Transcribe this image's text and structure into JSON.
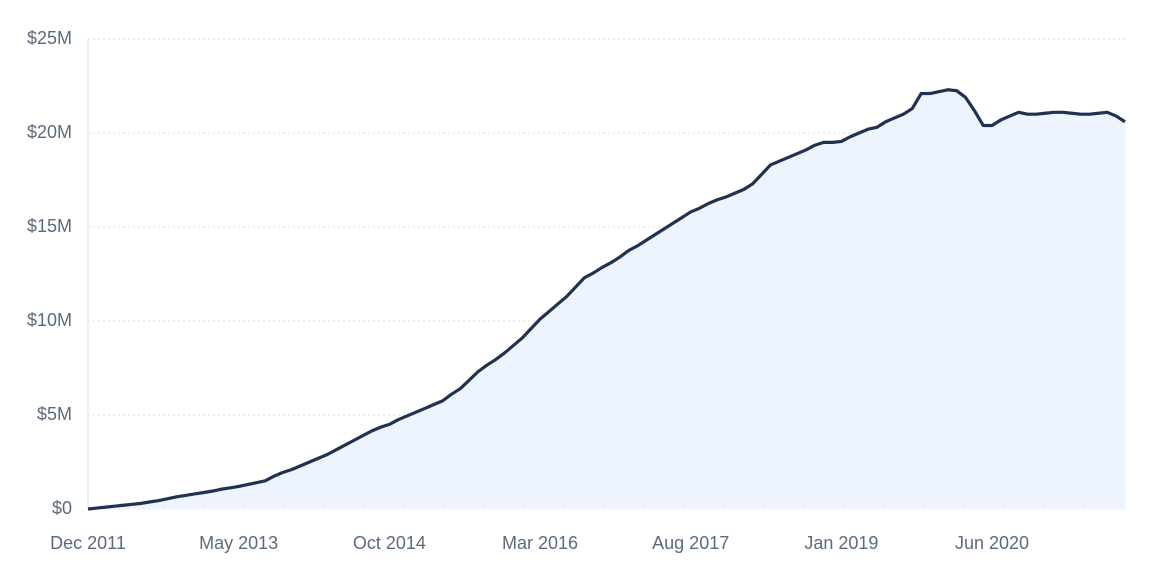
{
  "chart_data": {
    "type": "area",
    "categories": [
      "Dec 2011",
      null,
      null,
      null,
      null,
      null,
      null,
      null,
      null,
      null,
      null,
      null,
      null,
      null,
      null,
      null,
      null,
      "May 2013",
      null,
      null,
      null,
      null,
      null,
      null,
      null,
      null,
      null,
      null,
      null,
      null,
      null,
      null,
      null,
      null,
      "Oct 2014",
      null,
      null,
      null,
      null,
      null,
      null,
      null,
      null,
      null,
      null,
      null,
      null,
      null,
      null,
      null,
      null,
      "Mar 2016",
      null,
      null,
      null,
      null,
      null,
      null,
      null,
      null,
      null,
      null,
      null,
      null,
      null,
      null,
      null,
      null,
      "Aug 2017",
      null,
      null,
      null,
      null,
      null,
      null,
      null,
      null,
      null,
      null,
      null,
      null,
      null,
      null,
      null,
      null,
      "Jan 2019",
      null,
      null,
      null,
      null,
      null,
      null,
      null,
      null,
      null,
      null,
      null,
      null,
      null,
      null,
      null,
      null,
      "Jun 2020",
      null,
      null,
      null,
      null,
      null,
      null,
      null,
      null,
      null,
      null,
      null,
      null,
      null,
      null,
      null
    ],
    "values": [
      0,
      50000,
      100000,
      150000,
      200000,
      250000,
      300000,
      380000,
      450000,
      550000,
      650000,
      720000,
      800000,
      870000,
      950000,
      1050000,
      1120000,
      1200000,
      1300000,
      1400000,
      1500000,
      1750000,
      1950000,
      2100000,
      2300000,
      2500000,
      2700000,
      2900000,
      3150000,
      3400000,
      3650000,
      3900000,
      4150000,
      4350000,
      4500000,
      4750000,
      4950000,
      5150000,
      5350000,
      5550000,
      5750000,
      6100000,
      6400000,
      6850000,
      7300000,
      7650000,
      7950000,
      8300000,
      8700000,
      9100000,
      9600000,
      10100000,
      10500000,
      10900000,
      11300000,
      11800000,
      12300000,
      12550000,
      12850000,
      13100000,
      13400000,
      13750000,
      14000000,
      14300000,
      14600000,
      14900000,
      15200000,
      15500000,
      15800000,
      16000000,
      16250000,
      16450000,
      16600000,
      16800000,
      17000000,
      17300000,
      17800000,
      18300000,
      18500000,
      18700000,
      18900000,
      19100000,
      19350000,
      19500000,
      19500000,
      19550000,
      19800000,
      20000000,
      20200000,
      20300000,
      20600000,
      20800000,
      21000000,
      21300000,
      22100000,
      22100000,
      22200000,
      22300000,
      22250000,
      21900000,
      21200000,
      20400000,
      20400000,
      20700000,
      20900000,
      21100000,
      21000000,
      21000000,
      21050000,
      21100000,
      21100000,
      21050000,
      21000000,
      21000000,
      21050000,
      21100000,
      20900000,
      20600000
    ],
    "color": "#1f3251",
    "fill_color": "#eef4fd",
    "ylim": [
      0,
      25000000
    ],
    "yticks": [
      {
        "value": 0,
        "label": "$0"
      },
      {
        "value": 5000000,
        "label": "$5M"
      },
      {
        "value": 10000000,
        "label": "$10M"
      },
      {
        "value": 15000000,
        "label": "$15M"
      },
      {
        "value": 20000000,
        "label": "$20M"
      },
      {
        "value": 25000000,
        "label": "$25M"
      }
    ],
    "grid": true
  }
}
